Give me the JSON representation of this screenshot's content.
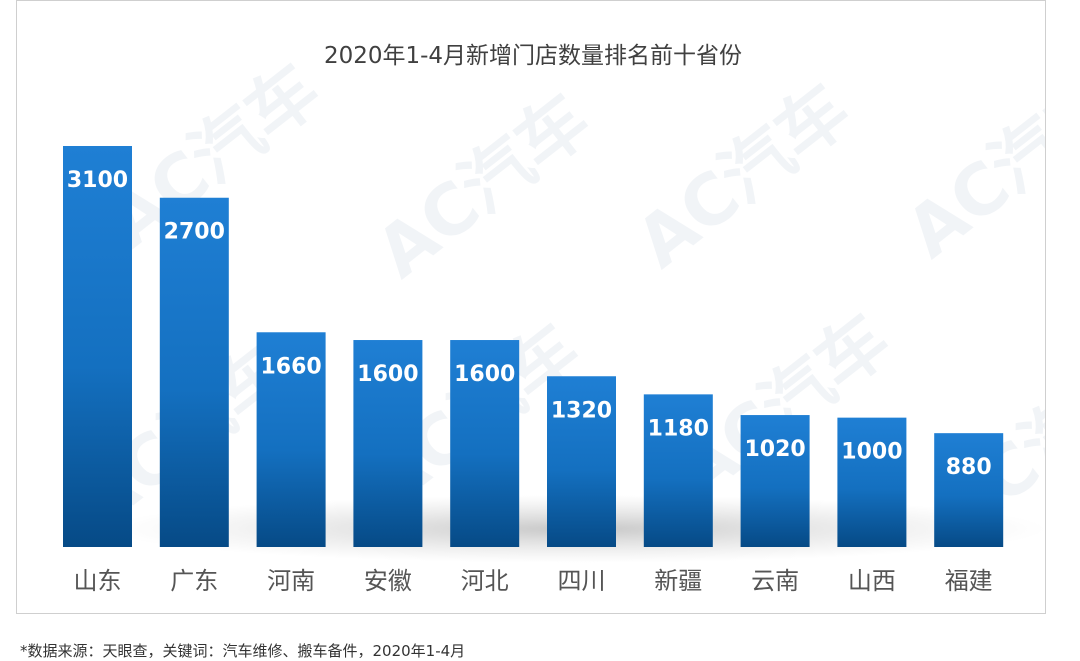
{
  "chart_data": {
    "type": "bar",
    "title": "2020年1-4月新增门店数量排名前十省份",
    "categories": [
      "山东",
      "广东",
      "河南",
      "安徽",
      "河北",
      "四川",
      "新疆",
      "云南",
      "山西",
      "福建"
    ],
    "values": [
      3100,
      2700,
      1660,
      1600,
      1600,
      1320,
      1180,
      1020,
      1000,
      880
    ],
    "value_labels": [
      "3100",
      "2700",
      "1660",
      "1600",
      "1600",
      "1320",
      "1180",
      "1020",
      "1000",
      "880"
    ],
    "ylim": [
      0,
      3100
    ],
    "grid": false,
    "bar_color_top": "#1f7fd4",
    "bar_color_bottom": "#064a86"
  },
  "watermark_text": "AC汽车",
  "caption": "*数据来源：天眼查，关键词：汽车维修、搬车备件，2020年1-4月"
}
